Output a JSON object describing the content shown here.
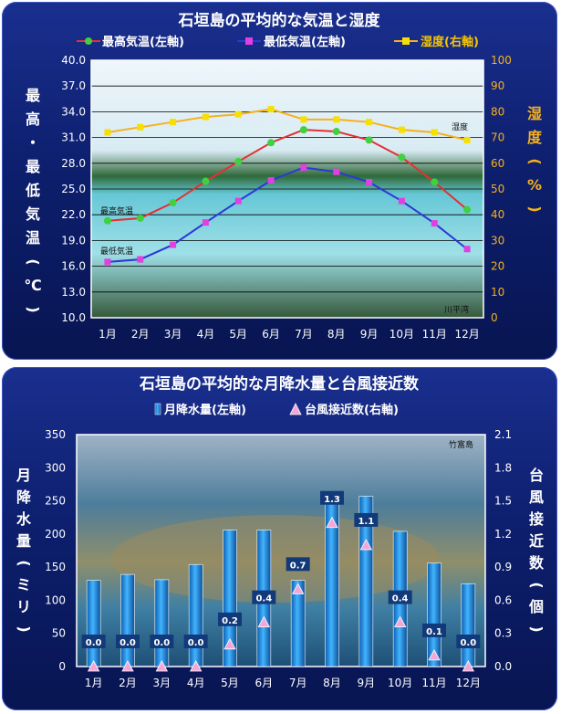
{
  "chart_data": [
    {
      "type": "line",
      "title": "石垣島の平均的な気温と湿度",
      "categories": [
        "1月",
        "2月",
        "3月",
        "4月",
        "5月",
        "6月",
        "7月",
        "8月",
        "9月",
        "10月",
        "11月",
        "12月"
      ],
      "ylabel_left": "最高・最低気温(℃)",
      "ylabel_right": "湿度(%)",
      "ylim_left": [
        10.0,
        40.0
      ],
      "yticks_left": [
        "10.0",
        "13.0",
        "16.0",
        "19.0",
        "22.0",
        "25.0",
        "28.0",
        "31.0",
        "34.0",
        "37.0",
        "40.0"
      ],
      "ylim_right": [
        0,
        100
      ],
      "yticks_right": [
        "0",
        "10",
        "20",
        "30",
        "40",
        "50",
        "60",
        "70",
        "80",
        "90",
        "100"
      ],
      "grid": true,
      "legend_position": "top",
      "series": [
        {
          "name": "最高気温(左軸)",
          "axis": "left",
          "color": "#e53030",
          "marker": "circle",
          "marker_color": "#3fd13f",
          "values": [
            21.3,
            21.6,
            23.4,
            25.9,
            28.2,
            30.4,
            31.9,
            31.7,
            30.7,
            28.7,
            25.8,
            22.6
          ]
        },
        {
          "name": "最低気温(左軸)",
          "axis": "left",
          "color": "#2a38d8",
          "marker": "square",
          "marker_color": "#e040e0",
          "values": [
            16.5,
            16.8,
            18.5,
            21.1,
            23.6,
            26.0,
            27.5,
            27.0,
            25.8,
            23.6,
            21.0,
            18.0
          ]
        },
        {
          "name": "湿度(右軸)",
          "axis": "right",
          "color": "#f6b11b",
          "marker": "square",
          "marker_color": "#f6e000",
          "values": [
            72,
            74,
            76,
            78,
            79,
            81,
            77,
            77,
            76,
            73,
            72,
            69
          ]
        }
      ],
      "annotations": [
        {
          "text": "湿度",
          "anchor": "湿度(右軸)"
        },
        {
          "text": "最高気温",
          "anchor": "最高気温(左軸)"
        },
        {
          "text": "最低気温",
          "anchor": "最低気温(左軸)"
        },
        {
          "text": "川平湾",
          "anchor": "photo-caption"
        }
      ]
    },
    {
      "type": "bar",
      "title": "石垣島の平均的な月降水量と台風接近数",
      "categories": [
        "1月",
        "2月",
        "3月",
        "4月",
        "5月",
        "6月",
        "7月",
        "8月",
        "9月",
        "10月",
        "11月",
        "12月"
      ],
      "ylabel_left": "月降水量(ミリ)",
      "ylabel_right": "台風接近数(個)",
      "ylim_left": [
        0,
        350
      ],
      "yticks_left": [
        "0",
        "50",
        "100",
        "150",
        "200",
        "250",
        "300",
        "350"
      ],
      "ylim_right": [
        0.0,
        2.1
      ],
      "yticks_right": [
        "0.0",
        "0.3",
        "0.6",
        "0.9",
        "1.2",
        "1.5",
        "1.8",
        "2.1"
      ],
      "grid": false,
      "legend_position": "top",
      "series": [
        {
          "name": "月降水量(左軸)",
          "axis": "left",
          "kind": "bar",
          "color": "#1f8fe0",
          "values": [
            130,
            139,
            131,
            154,
            206,
            206,
            130,
            261,
            257,
            204,
            156,
            125
          ]
        },
        {
          "name": "台風接近数(右軸)",
          "axis": "right",
          "kind": "marker",
          "marker": "triangle",
          "marker_color": "#f3a6d8",
          "values": [
            0.0,
            0.0,
            0.0,
            0.0,
            0.2,
            0.4,
            0.7,
            1.3,
            1.1,
            0.4,
            0.1,
            0.0
          ],
          "labels": [
            "0.0",
            "0.0",
            "0.0",
            "0.0",
            "0.2",
            "0.4",
            "0.7",
            "1.3",
            "1.1",
            "0.4",
            "0.1",
            "0.0"
          ]
        }
      ],
      "annotations": [
        {
          "text": "竹富島",
          "anchor": "photo-caption"
        }
      ]
    }
  ]
}
